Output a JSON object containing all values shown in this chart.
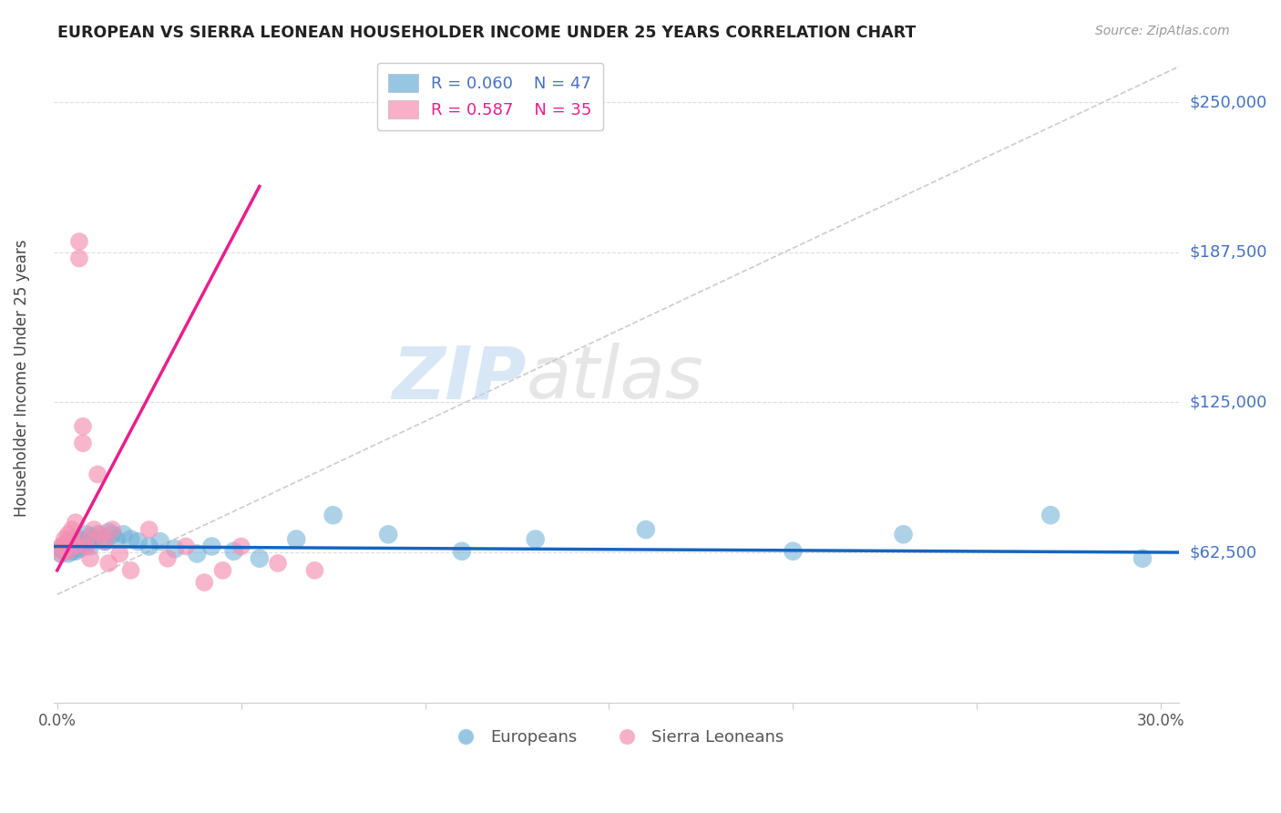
{
  "title": "EUROPEAN VS SIERRA LEONEAN HOUSEHOLDER INCOME UNDER 25 YEARS CORRELATION CHART",
  "source": "Source: ZipAtlas.com",
  "ylabel": "Householder Income Under 25 years",
  "ytick_labels": [
    "$250,000",
    "$187,500",
    "$125,000",
    "$62,500"
  ],
  "ytick_values": [
    250000,
    187500,
    125000,
    62500
  ],
  "ymin": 0,
  "ymax": 270000,
  "xmin": -0.001,
  "xmax": 0.305,
  "legend_blue_R": "R = 0.060",
  "legend_blue_N": "N = 47",
  "legend_pink_R": "R = 0.587",
  "legend_pink_N": "N = 35",
  "watermark_zip": "ZIP",
  "watermark_atlas": "atlas",
  "blue_color": "#6baed6",
  "pink_color": "#f48fb1",
  "blue_line_color": "#1565c0",
  "pink_line_color": "#e91e8c",
  "xtick_positions": [
    0.0,
    0.05,
    0.1,
    0.15,
    0.2,
    0.25,
    0.3
  ],
  "xtick_labels": [
    "0.0%",
    "",
    "",
    "",
    "",
    "",
    "30.0%"
  ],
  "europeans_x": [
    0.001,
    0.001,
    0.002,
    0.002,
    0.003,
    0.003,
    0.003,
    0.004,
    0.004,
    0.005,
    0.005,
    0.005,
    0.006,
    0.006,
    0.007,
    0.007,
    0.008,
    0.008,
    0.009,
    0.009,
    0.01,
    0.011,
    0.012,
    0.013,
    0.014,
    0.015,
    0.016,
    0.018,
    0.02,
    0.022,
    0.025,
    0.028,
    0.032,
    0.038,
    0.042,
    0.048,
    0.055,
    0.065,
    0.075,
    0.09,
    0.11,
    0.13,
    0.16,
    0.2,
    0.23,
    0.27,
    0.295
  ],
  "europeans_y": [
    64000,
    62000,
    65000,
    63000,
    66000,
    64000,
    62000,
    65000,
    63000,
    67000,
    65000,
    63000,
    68000,
    64000,
    67000,
    65000,
    70000,
    66000,
    69000,
    65000,
    68000,
    70000,
    68000,
    67000,
    71000,
    70000,
    68000,
    70000,
    68000,
    67000,
    65000,
    67000,
    64000,
    62000,
    65000,
    63000,
    60000,
    68000,
    78000,
    70000,
    63000,
    68000,
    72000,
    63000,
    70000,
    78000,
    60000
  ],
  "sierraloneans_x": [
    0.001,
    0.001,
    0.002,
    0.002,
    0.002,
    0.003,
    0.003,
    0.003,
    0.004,
    0.004,
    0.005,
    0.005,
    0.006,
    0.006,
    0.007,
    0.007,
    0.008,
    0.008,
    0.009,
    0.01,
    0.011,
    0.012,
    0.013,
    0.014,
    0.015,
    0.017,
    0.02,
    0.025,
    0.03,
    0.035,
    0.04,
    0.045,
    0.05,
    0.06,
    0.07
  ],
  "sierraloneans_y": [
    65000,
    62000,
    68000,
    66000,
    64000,
    70000,
    67000,
    63000,
    72000,
    68000,
    75000,
    65000,
    192000,
    185000,
    115000,
    108000,
    68000,
    65000,
    60000,
    72000,
    95000,
    70000,
    67000,
    58000,
    72000,
    62000,
    55000,
    72000,
    60000,
    65000,
    50000,
    55000,
    65000,
    58000,
    55000
  ],
  "eu_trend_x": [
    -0.001,
    0.305
  ],
  "eu_trend_y": [
    65000,
    62500
  ],
  "sl_trend_x": [
    0.0,
    0.055
  ],
  "sl_trend_y": [
    55000,
    215000
  ]
}
